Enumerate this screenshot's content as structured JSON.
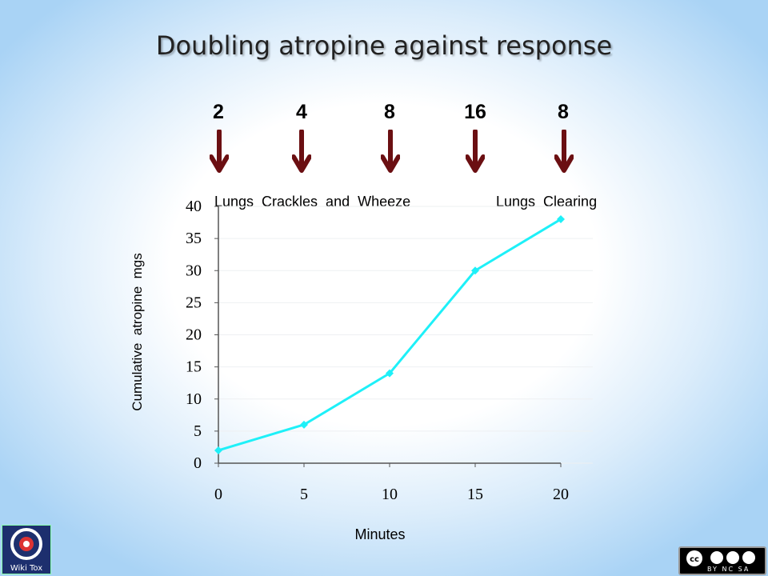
{
  "slide": {
    "title": "Doubling atropine against response"
  },
  "doses": [
    "2",
    "4",
    "8",
    "16",
    "8"
  ],
  "notes": {
    "left": "Lungs  Crackles  and  Wheeze",
    "right": "Lungs  Clearing"
  },
  "colors": {
    "series": "#1ef0f8",
    "arrow": "#6b0f12",
    "axis": "#555555"
  },
  "logos": {
    "left_text": "Wiki Tox",
    "cc_text": "BY NC SA"
  },
  "chart_data": {
    "type": "line",
    "title": "",
    "xlabel": "Minutes",
    "ylabel": "Cumulative  atropine  mgs",
    "x": [
      0,
      5,
      10,
      15,
      20
    ],
    "y": [
      2,
      6,
      14,
      30,
      38
    ],
    "xlim": [
      0,
      20
    ],
    "ylim": [
      0,
      40
    ],
    "xticks": [
      "0",
      "5",
      "10",
      "15",
      "20"
    ],
    "yticks": [
      "0",
      "5",
      "10",
      "15",
      "20",
      "25",
      "30",
      "35",
      "40"
    ],
    "grid": true
  }
}
